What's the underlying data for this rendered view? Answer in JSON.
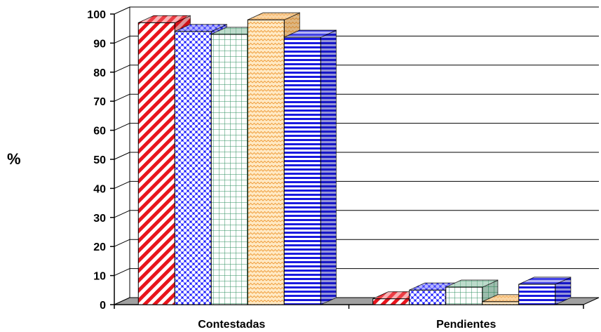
{
  "chart_data": {
    "type": "bar",
    "style": "3d-clustered",
    "ylabel": "%",
    "xlabel": "",
    "ylim": [
      0,
      100
    ],
    "yticks": [
      0,
      10,
      20,
      30,
      40,
      50,
      60,
      70,
      80,
      90,
      100
    ],
    "grid": true,
    "categories": [
      "Contestadas",
      "Pendientes"
    ],
    "series": [
      {
        "values": [
          97,
          2
        ],
        "color": "#e8141c",
        "fill": "white",
        "pattern": "diagonal-stripes"
      },
      {
        "values": [
          94,
          5
        ],
        "color": "#1a1aff",
        "fill": "white",
        "pattern": "dots"
      },
      {
        "values": [
          93,
          6
        ],
        "color": "#2f8f5f",
        "fill": "white",
        "pattern": "grid"
      },
      {
        "values": [
          98,
          1
        ],
        "color": "#f0a040",
        "fill": "#ffe9c4",
        "pattern": "waves"
      },
      {
        "values": [
          92,
          7
        ],
        "color": "#1a1ae0",
        "fill": "white",
        "pattern": "horizontal-stripes"
      }
    ]
  }
}
